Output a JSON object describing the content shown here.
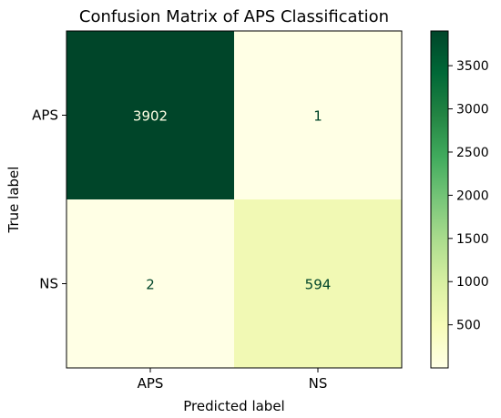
{
  "chart_data": {
    "type": "heatmap",
    "title": "Confusion Matrix of APS Classification",
    "xlabel": "Predicted label",
    "ylabel": "True label",
    "x_categories": [
      "APS",
      "NS"
    ],
    "y_categories": [
      "APS",
      "NS"
    ],
    "values": [
      [
        3902,
        1
      ],
      [
        2,
        594
      ]
    ],
    "colormap": "Greens",
    "colorbar": {
      "range": [
        1,
        3902
      ],
      "ticks": [
        500,
        1000,
        1500,
        2000,
        2500,
        3000,
        3500
      ],
      "tick_labels": [
        "500",
        "1000",
        "1500",
        "2000",
        "2500",
        "3000",
        "3500"
      ]
    },
    "grid": false
  }
}
